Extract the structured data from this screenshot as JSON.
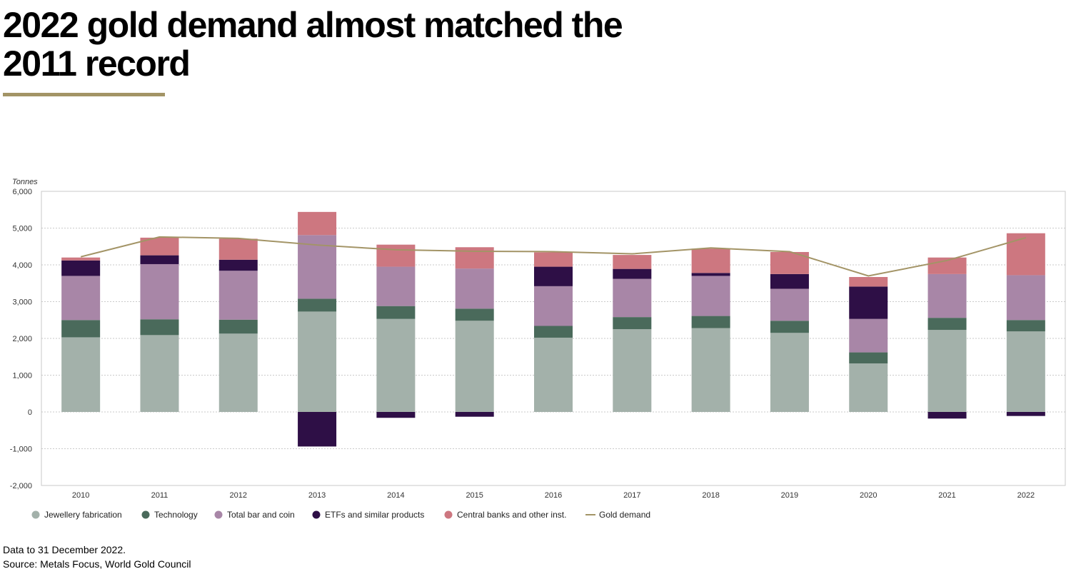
{
  "title_lines": [
    "2022 gold demand almost matched the",
    "2011 record"
  ],
  "colors": {
    "accent": "#A39466",
    "jewellery": "#A3B1AA",
    "technology": "#4A6A5B",
    "bar_coin": "#A886A7",
    "etfs": "#2E0F46",
    "central_banks": "#CD7780",
    "gold_line": "#A39466"
  },
  "chart_data": {
    "type": "bar",
    "stacked": true,
    "ylabel": "Tonnes",
    "ylim": [
      -2000,
      6000
    ],
    "yticks": [
      -2000,
      -1000,
      0,
      1000,
      2000,
      3000,
      4000,
      5000,
      6000
    ],
    "ytick_labels": [
      "-2,000",
      "-1,000",
      "0",
      "1,000",
      "2,000",
      "3,000",
      "4,000",
      "5,000",
      "6,000"
    ],
    "grid": true,
    "legend_position": "bottom",
    "categories": [
      "2010",
      "2011",
      "2012",
      "2013",
      "2014",
      "2015",
      "2016",
      "2017",
      "2018",
      "2019",
      "2020",
      "2021",
      "2022"
    ],
    "series": [
      {
        "name": "Jewellery fabrication",
        "type": "bar",
        "color_key": "jewellery",
        "values": [
          2030,
          2090,
          2130,
          2730,
          2530,
          2480,
          2020,
          2250,
          2280,
          2150,
          1320,
          2230,
          2190
        ]
      },
      {
        "name": "Technology",
        "type": "bar",
        "color_key": "technology",
        "values": [
          470,
          430,
          380,
          350,
          350,
          330,
          320,
          330,
          330,
          330,
          300,
          330,
          310
        ]
      },
      {
        "name": "Total bar and coin",
        "type": "bar",
        "color_key": "bar_coin",
        "values": [
          1200,
          1500,
          1330,
          1730,
          1070,
          1090,
          1080,
          1040,
          1090,
          870,
          910,
          1190,
          1220
        ]
      },
      {
        "name": "ETFs and similar products",
        "type": "bar",
        "color_key": "etfs",
        "values": [
          420,
          240,
          300,
          -940,
          -160,
          -130,
          530,
          270,
          80,
          400,
          880,
          -180,
          -110
        ]
      },
      {
        "name": "Central banks and other inst.",
        "type": "bar",
        "color_key": "central_banks",
        "values": [
          80,
          480,
          570,
          630,
          600,
          580,
          390,
          380,
          660,
          600,
          260,
          450,
          1140
        ]
      },
      {
        "name": "Gold demand",
        "type": "line",
        "color_key": "gold_line",
        "values": [
          4220,
          4760,
          4720,
          4540,
          4410,
          4370,
          4360,
          4300,
          4460,
          4360,
          3700,
          4120,
          4740
        ]
      }
    ]
  },
  "footer": {
    "note": "Data to 31 December 2022.",
    "source": "Source: Metals Focus, World Gold Council"
  }
}
